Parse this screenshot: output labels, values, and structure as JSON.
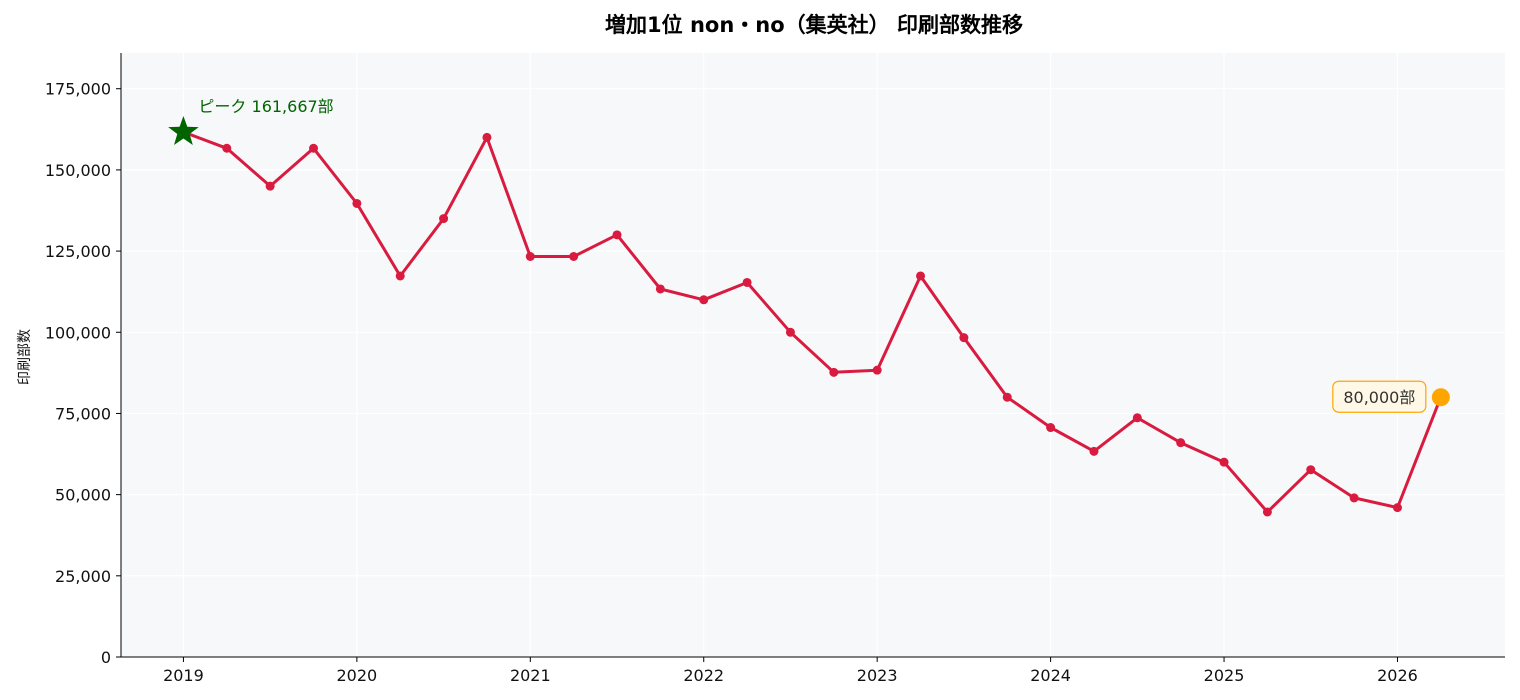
{
  "chart_data": {
    "type": "line",
    "title": "増加1位 non・no（集英社） 印刷部数推移",
    "xlabel": "",
    "ylabel": "印刷部数",
    "x": [
      2019.0,
      2019.25,
      2019.5,
      2019.75,
      2020.0,
      2020.25,
      2020.5,
      2020.75,
      2021.0,
      2021.25,
      2021.5,
      2021.75,
      2022.0,
      2022.25,
      2022.5,
      2022.75,
      2023.0,
      2023.25,
      2023.5,
      2023.75,
      2024.0,
      2024.25,
      2024.5,
      2024.75,
      2025.0,
      2025.25,
      2025.5,
      2025.75,
      2026.0,
      2026.25
    ],
    "series": [
      {
        "values": [
          161667,
          156667,
          145000,
          156667,
          139667,
          117333,
          135000,
          160000,
          123333,
          123333,
          130000,
          113333,
          110000,
          115333,
          100000,
          87667,
          88333,
          117333,
          98333,
          80000,
          70667,
          63333,
          73667,
          66000,
          60000,
          44667,
          57667,
          49000,
          46000,
          80000
        ]
      }
    ],
    "xlim": [
      2018.64,
      2026.62
    ],
    "ylim": [
      0,
      186000
    ],
    "xticks": [
      2019,
      2020,
      2021,
      2022,
      2023,
      2024,
      2025,
      2026
    ],
    "xtick_labels": [
      "2019",
      "2020",
      "2021",
      "2022",
      "2023",
      "2024",
      "2025",
      "2026"
    ],
    "yticks": [
      0,
      25000,
      50000,
      75000,
      100000,
      125000,
      150000,
      175000
    ],
    "ytick_labels": [
      "0",
      "25,000",
      "50,000",
      "75,000",
      "100,000",
      "125,000",
      "150,000",
      "175,000"
    ],
    "grid": true,
    "peak_annotation": {
      "text": "ピーク 161,667部",
      "x": 2019.0,
      "y": 161667
    },
    "last_annotation": {
      "text": "80,000部",
      "x": 2026.25,
      "y": 80000
    },
    "colors": {
      "line": "#d81b3f",
      "peak_star": "#006400",
      "peak_text": "#006400",
      "last_marker": "#ffa500",
      "last_box_border": "#ffa500",
      "last_box_fill": "#fff8e6",
      "plot_background": "#f7f8fa",
      "grid": "#ffffff"
    }
  }
}
